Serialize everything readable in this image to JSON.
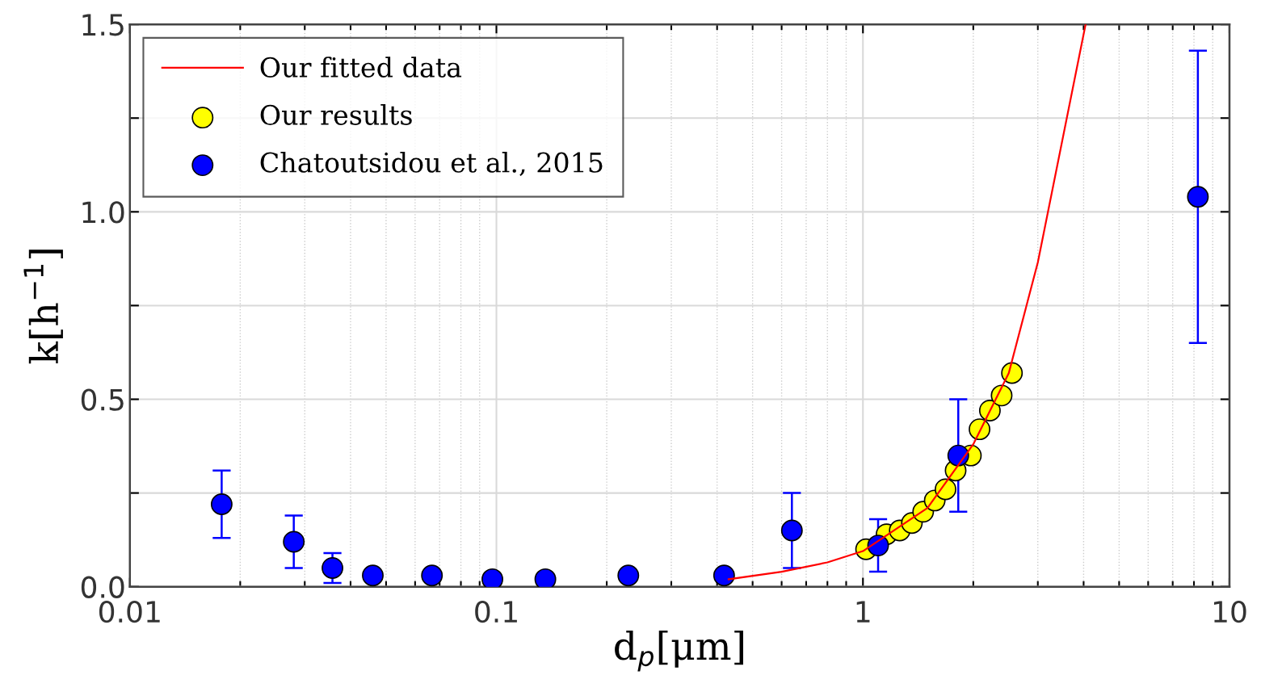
{
  "chart_data": {
    "type": "scatter",
    "xlabel": "d$_{p}$[μm]",
    "ylabel": "k[h$^{−1}$]",
    "log": "x",
    "xlim": [
      0.01,
      10
    ],
    "xticks": [
      {
        "value": 0.01,
        "label": "0.01"
      },
      {
        "value": 0.1,
        "label": "0.1"
      },
      {
        "value": 1,
        "label": "1"
      },
      {
        "value": 10,
        "label": "10"
      }
    ],
    "ylim": [
      0,
      1.5
    ],
    "yticks": [
      {
        "value": 0,
        "label": "0.0"
      },
      {
        "value": 0.25,
        "label": null
      },
      {
        "value": 0.5,
        "label": "0.5"
      },
      {
        "value": 0.75,
        "label": null
      },
      {
        "value": 1.0,
        "label": "1.0"
      },
      {
        "value": 1.25,
        "label": null
      },
      {
        "value": 1.5,
        "label": "1.5"
      }
    ],
    "grid": true,
    "legend": "top left",
    "series": [
      {
        "name": "Our fitted data",
        "type": "line",
        "marker": "none",
        "color": "#ff0000",
        "x": [
          0.43,
          0.6,
          0.8,
          1.0,
          1.5,
          2.0,
          2.5,
          3.0,
          4.05
        ],
        "values": [
          0.02,
          0.04,
          0.065,
          0.095,
          0.21,
          0.38,
          0.57,
          0.865,
          1.5
        ]
      },
      {
        "name": "Our results",
        "marker": "circle",
        "color": "#ffff00",
        "x": [
          1.02,
          1.16,
          1.26,
          1.36,
          1.46,
          1.57,
          1.68,
          1.79,
          1.97,
          2.08,
          2.22,
          2.39,
          2.55
        ],
        "values": [
          0.1,
          0.14,
          0.15,
          0.17,
          0.2,
          0.23,
          0.26,
          0.31,
          0.35,
          0.42,
          0.47,
          0.51,
          0.57
        ]
      },
      {
        "name": "Chatoutsidou et al., 2015",
        "marker": "circle",
        "color": "#0000ff",
        "x": [
          0.0178,
          0.028,
          0.0357,
          0.046,
          0.0667,
          0.0975,
          0.136,
          0.229,
          0.418,
          0.64,
          1.1,
          1.82,
          8.2
        ],
        "values": [
          0.22,
          0.12,
          0.05,
          0.03,
          0.03,
          0.02,
          0.02,
          0.03,
          0.03,
          0.15,
          0.11,
          0.35,
          1.04
        ],
        "errors": [
          [
            0.13,
            0.31
          ],
          [
            0.05,
            0.19
          ],
          [
            0.01,
            0.09
          ],
          null,
          null,
          null,
          null,
          null,
          null,
          [
            0.05,
            0.25
          ],
          [
            0.04,
            0.18
          ],
          [
            0.2,
            0.5
          ],
          [
            0.65,
            1.43
          ]
        ]
      }
    ]
  }
}
